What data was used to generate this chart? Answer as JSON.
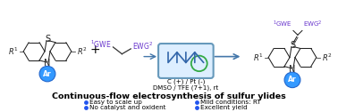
{
  "title": "Continuous-flow electrosynthesis of sulfur ylides",
  "bullet_points_left": [
    "Easy to scale up",
    "No catalyst and oxident"
  ],
  "bullet_points_right": [
    "Mild conditions: RT",
    "Excellent yield"
  ],
  "conditions_line1": "C (+) / Pt (-)",
  "conditions_line2": "DMSO / TFE (7+1), rt",
  "arrow_color": "#4477aa",
  "bullet_color": "#2255ee",
  "title_color": "#000000",
  "bg_color": "#ffffff",
  "flow_cell_edge": "#6699bb",
  "flow_cell_fill": "#ddeeff",
  "coil_color": "#3366aa",
  "circle_color": "#33aa44",
  "structure_color": "#222222",
  "blue_circle_color": "#3399ff",
  "blue_circle_edge": "#2266cc",
  "superscript_color": "#6633cc",
  "plus_color": "#000000",
  "bond_color": "#333333"
}
